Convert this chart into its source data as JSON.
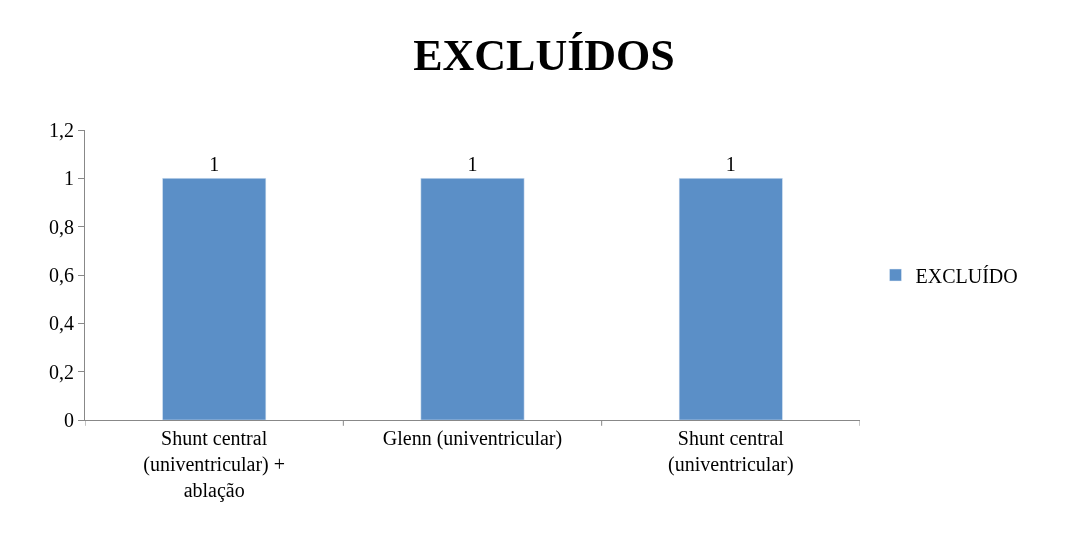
{
  "chart_data": {
    "type": "bar",
    "title": "EXCLUÍDOS",
    "categories": [
      "Shunt central\n(univentricular) +\nablação",
      "Glenn (univentricular)",
      "Shunt central\n(univentricular)"
    ],
    "series": [
      {
        "name": "EXCLUÍDO",
        "color": "#5b8fc7",
        "values": [
          1,
          1,
          1
        ]
      }
    ],
    "ylim": [
      0,
      1.2
    ],
    "yticks": [
      0,
      {
        "value": 0.2,
        "label": "0,2"
      },
      {
        "value": 0.4,
        "label": "0,4"
      },
      {
        "value": 0.6,
        "label": "0,6"
      },
      {
        "value": 0.8,
        "label": "0,8"
      },
      1,
      {
        "value": 1.2,
        "label": "1,2"
      }
    ],
    "data_labels": true,
    "legend": "right"
  }
}
